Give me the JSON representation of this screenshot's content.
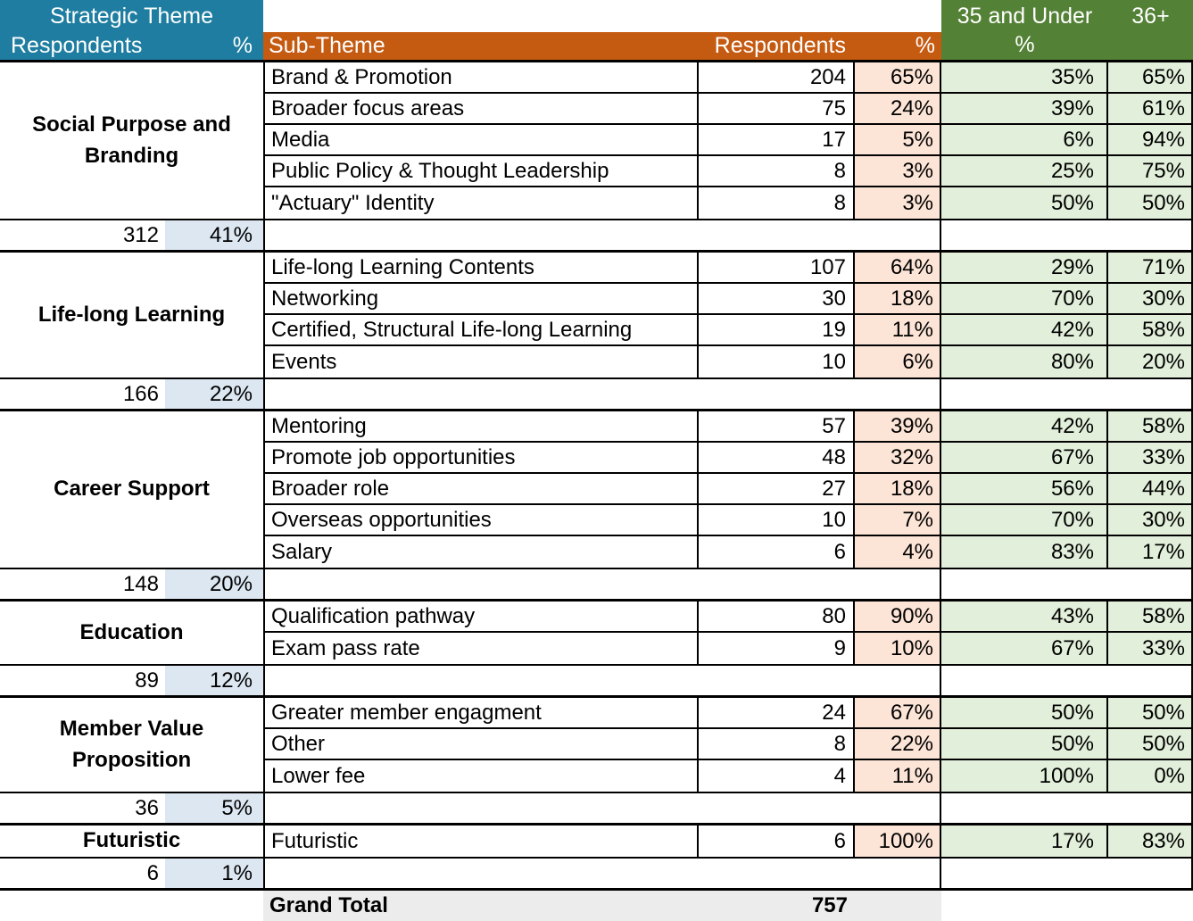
{
  "colors": {
    "blue_header": "#1E7DA0",
    "orange_header": "#C55A11",
    "green_header": "#538135",
    "peach_cell": "#FCE4D6",
    "green_cell": "#E2EFDA",
    "blue_cell": "#DCE7F2",
    "gray_cell": "#ECECEC"
  },
  "header": {
    "left": {
      "title": "Strategic Theme",
      "respondents_label": "Respondents",
      "pct_label": "%"
    },
    "middle": {
      "subtheme_label": "Sub-Theme",
      "respondents_label": "Respondents",
      "pct_label": "%"
    },
    "right": {
      "under35_label": "35 and Under",
      "under35_pct_label": "%",
      "over36_label": "36+"
    }
  },
  "chart_data": {
    "type": "table",
    "title": "Strategic Theme survey responses by sub-theme and age group",
    "columns": [
      "Strategic Theme",
      "Strategic Theme Respondents",
      "Strategic Theme %",
      "Sub-Theme",
      "Respondents",
      "%",
      "35 and Under %",
      "36+ %"
    ],
    "sections": [
      {
        "theme": "Social Purpose and Branding",
        "respondents": 312,
        "pct": "41%",
        "sub_themes": [
          {
            "name": "Brand & Promotion",
            "respondents": 204,
            "pct": "65%",
            "under_35_pct": "35%",
            "over_36_pct": "65%"
          },
          {
            "name": "Broader focus areas",
            "respondents": 75,
            "pct": "24%",
            "under_35_pct": "39%",
            "over_36_pct": "61%"
          },
          {
            "name": "Media",
            "respondents": 17,
            "pct": "5%",
            "under_35_pct": "6%",
            "over_36_pct": "94%"
          },
          {
            "name": "Public Policy & Thought Leadership",
            "respondents": 8,
            "pct": "3%",
            "under_35_pct": "25%",
            "over_36_pct": "75%"
          },
          {
            "name": "\"Actuary\" Identity",
            "respondents": 8,
            "pct": "3%",
            "under_35_pct": "50%",
            "over_36_pct": "50%"
          }
        ]
      },
      {
        "theme": "Life-long Learning",
        "respondents": 166,
        "pct": "22%",
        "sub_themes": [
          {
            "name": "Life-long Learning Contents",
            "respondents": 107,
            "pct": "64%",
            "under_35_pct": "29%",
            "over_36_pct": "71%"
          },
          {
            "name": "Networking",
            "respondents": 30,
            "pct": "18%",
            "under_35_pct": "70%",
            "over_36_pct": "30%"
          },
          {
            "name": "Certified, Structural Life-long Learning",
            "respondents": 19,
            "pct": "11%",
            "under_35_pct": "42%",
            "over_36_pct": "58%"
          },
          {
            "name": "Events",
            "respondents": 10,
            "pct": "6%",
            "under_35_pct": "80%",
            "over_36_pct": "20%"
          }
        ]
      },
      {
        "theme": "Career Support",
        "respondents": 148,
        "pct": "20%",
        "sub_themes": [
          {
            "name": "Mentoring",
            "respondents": 57,
            "pct": "39%",
            "under_35_pct": "42%",
            "over_36_pct": "58%"
          },
          {
            "name": "Promote job opportunities",
            "respondents": 48,
            "pct": "32%",
            "under_35_pct": "67%",
            "over_36_pct": "33%"
          },
          {
            "name": "Broader role",
            "respondents": 27,
            "pct": "18%",
            "under_35_pct": "56%",
            "over_36_pct": "44%"
          },
          {
            "name": "Overseas opportunities",
            "respondents": 10,
            "pct": "7%",
            "under_35_pct": "70%",
            "over_36_pct": "30%"
          },
          {
            "name": "Salary",
            "respondents": 6,
            "pct": "4%",
            "under_35_pct": "83%",
            "over_36_pct": "17%"
          }
        ]
      },
      {
        "theme": "Education",
        "respondents": 89,
        "pct": "12%",
        "sub_themes": [
          {
            "name": "Qualification pathway",
            "respondents": 80,
            "pct": "90%",
            "under_35_pct": "43%",
            "over_36_pct": "58%"
          },
          {
            "name": "Exam pass rate",
            "respondents": 9,
            "pct": "10%",
            "under_35_pct": "67%",
            "over_36_pct": "33%"
          }
        ]
      },
      {
        "theme": "Member Value Proposition",
        "respondents": 36,
        "pct": "5%",
        "sub_themes": [
          {
            "name": "Greater member engagment",
            "respondents": 24,
            "pct": "67%",
            "under_35_pct": "50%",
            "over_36_pct": "50%"
          },
          {
            "name": "Other",
            "respondents": 8,
            "pct": "22%",
            "under_35_pct": "50%",
            "over_36_pct": "50%"
          },
          {
            "name": "Lower fee",
            "respondents": 4,
            "pct": "11%",
            "under_35_pct": "100%",
            "over_36_pct": "0%"
          }
        ]
      },
      {
        "theme": "Futuristic",
        "respondents": 6,
        "pct": "1%",
        "sub_themes": [
          {
            "name": "Futuristic",
            "respondents": 6,
            "pct": "100%",
            "under_35_pct": "17%",
            "over_36_pct": "83%"
          }
        ]
      }
    ],
    "grand_total_label": "Grand Total",
    "grand_total_respondents": 757,
    "layout_hints": {
      "grid": true,
      "section_totals_highlight": "light blue",
      "pct_column_highlight": "light peach",
      "age_columns_highlight": "light green"
    }
  }
}
